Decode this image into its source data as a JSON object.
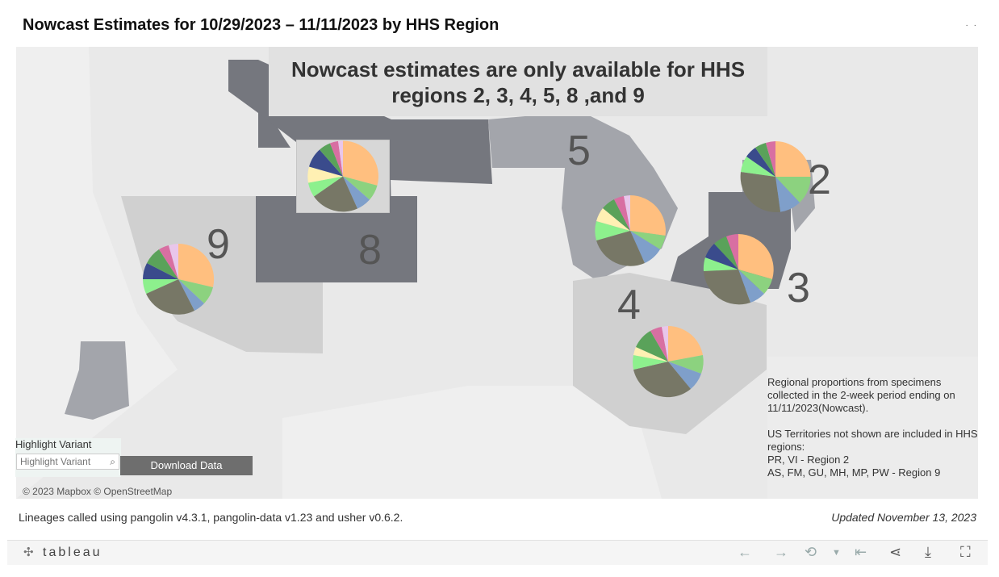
{
  "page_title": "Nowcast Estimates for 10/29/2023 – 11/11/2023 by HHS Region",
  "corner_mark": "·  ·",
  "banner": {
    "line1": "Nowcast estimates are only available for HHS",
    "line2": "regions 2, 3, 4, 5,  8 ,and 9"
  },
  "region_labels": {
    "r2": "2",
    "r3": "3",
    "r4": "4",
    "r5": "5",
    "r8": "8",
    "r9": "9"
  },
  "info_panel": {
    "line1": "Regional proportions from specimens collected in the 2-week period ending on 11/11/2023(Nowcast).",
    "line2": "US Territories not shown are included in HHS regions:",
    "line3": "PR, VI - Region 2",
    "line4": "AS, FM, GU, MH, MP, PW - Region 9"
  },
  "highlight": {
    "label": "Highlight Variant",
    "placeholder": "Highlight Variant"
  },
  "download_button": "Download Data",
  "map_attribution": "© 2023 Mapbox  © OpenStreetMap",
  "footer": {
    "lineage_note": "Lineages called using pangolin v4.3.1, pangolin-data v1.23 and usher v0.6.2.",
    "updated": "Updated November 13, 2023"
  },
  "toolbar": {
    "logo_text": "tableau",
    "icons": [
      "undo-icon",
      "redo-icon",
      "revert-icon",
      "revert-all-icon",
      "share-icon",
      "download-icon",
      "fullscreen-icon"
    ]
  },
  "colors": {
    "region_dark": "#75777e",
    "region_mid": "#a3a5ab",
    "region_light": "#d0d0d0",
    "land": "#e9e9e9",
    "orange": "#ffbf7f",
    "green": "#8cd27f",
    "olive": "#777766",
    "steel": "#7f9fca"
  }
}
